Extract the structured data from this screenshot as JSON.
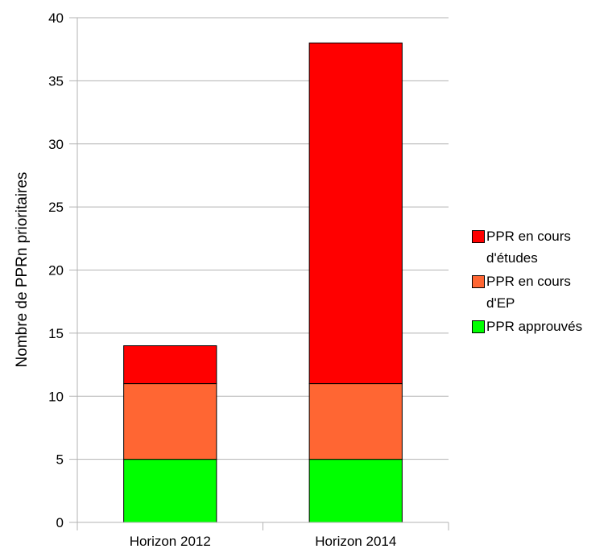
{
  "chart_data": {
    "type": "bar",
    "stacked": true,
    "categories": [
      "Horizon 2012",
      "Horizon 2014"
    ],
    "series": [
      {
        "name": "PPR approuvés",
        "values": [
          5,
          5
        ],
        "color": "#00ff00"
      },
      {
        "name": "PPR en cours d'EP",
        "values": [
          6,
          6
        ],
        "color": "#ff6633"
      },
      {
        "name": "PPR en cours d'études",
        "values": [
          3,
          27
        ],
        "color": "#ff0000"
      }
    ],
    "legend_order": [
      2,
      1,
      0
    ],
    "ylabel": "Nombre de PPRn prioritaires",
    "xlabel": "",
    "ylim": [
      0,
      40
    ],
    "yticks": [
      0,
      5,
      10,
      15,
      20,
      25,
      30,
      35,
      40
    ],
    "grid": "horizontal",
    "legend_position": "right"
  }
}
